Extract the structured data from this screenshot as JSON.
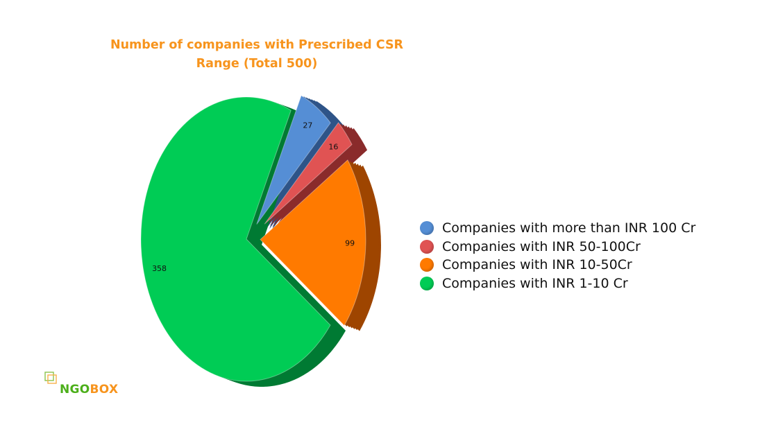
{
  "chart_data": {
    "type": "pie",
    "title": "Number of companies with Prescribed CSR Range (Total 500)",
    "categories": [
      "Companies with more than INR 100 Cr",
      "Companies with INR 50-100Cr",
      "Companies with INR 10-50Cr",
      "Companies with INR 1-10 Cr"
    ],
    "values": [
      27,
      16,
      99,
      358
    ],
    "colors": [
      "#558ed5",
      "#e05353",
      "#ff7a00",
      "#00cc55"
    ],
    "side_colors": [
      "#2e5488",
      "#8a2b2b",
      "#9e4500",
      "#007a33"
    ],
    "exploded": true,
    "three_d": true,
    "legend_position": "right"
  },
  "logo": {
    "part1": "NGO",
    "part2": "BOX"
  }
}
